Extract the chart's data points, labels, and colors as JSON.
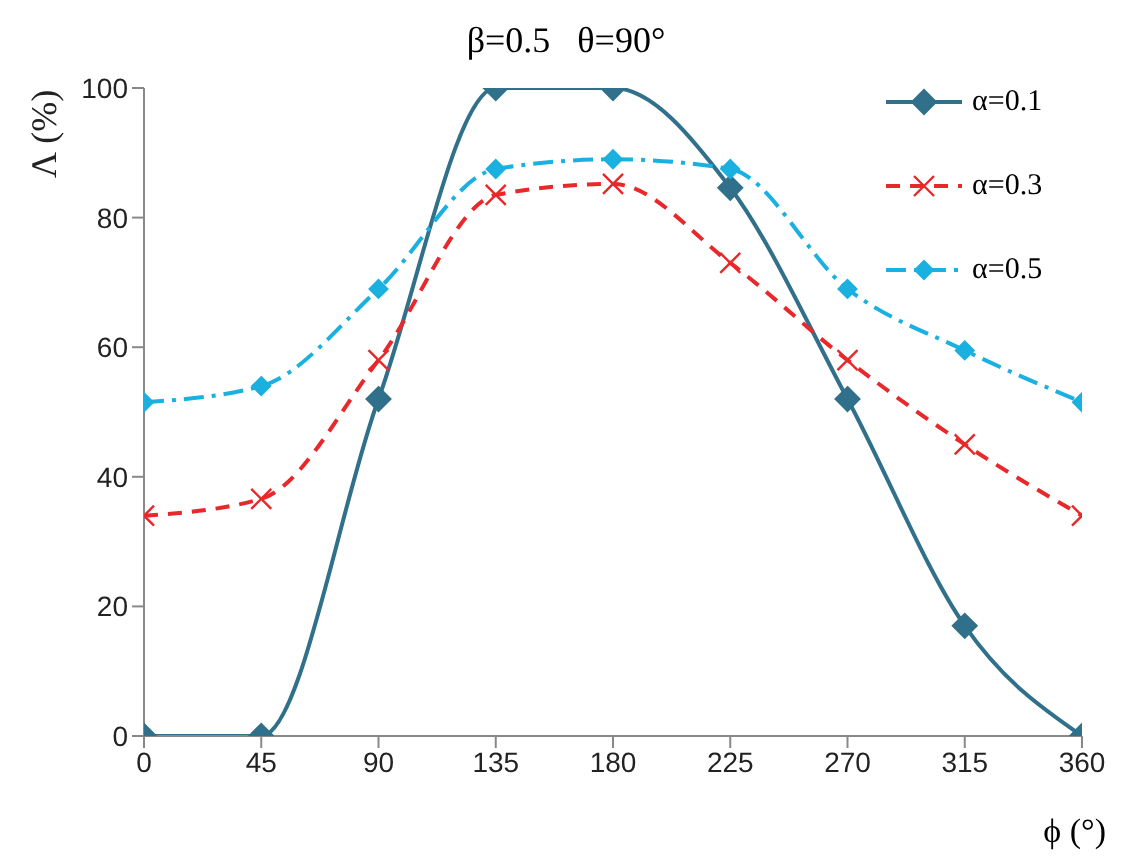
{
  "chart_data": {
    "type": "line",
    "title": "β=0.5   θ=90°",
    "xlabel": "ϕ (°)",
    "ylabel": "Λ (%)",
    "x": [
      0,
      45,
      90,
      135,
      180,
      225,
      270,
      315,
      360
    ],
    "series": [
      {
        "name": "α=0.1",
        "color": "#31708a",
        "values": [
          0,
          0,
          52,
          100,
          100,
          84.6,
          52,
          17,
          0
        ],
        "marker": "diamond",
        "line_style": "solid"
      },
      {
        "name": "α=0.3",
        "color": "#e8282a",
        "values": [
          34,
          36.6,
          58,
          83.5,
          85.2,
          73,
          58,
          45,
          34
        ],
        "marker": "cross",
        "line_style": "dashed"
      },
      {
        "name": "α=0.5",
        "color": "#1ab0e0",
        "values": [
          51.5,
          54,
          69,
          87.5,
          89,
          87.5,
          69,
          59.5,
          51.5
        ],
        "marker": "diamond",
        "line_style": "dashdot"
      }
    ],
    "xlim": [
      0,
      360
    ],
    "xticks": [
      0,
      45,
      90,
      135,
      180,
      225,
      270,
      315,
      360
    ],
    "ylim": [
      0,
      100
    ],
    "yticks": [
      0,
      20,
      40,
      60,
      80,
      100
    ],
    "grid": false,
    "legend": "top right"
  }
}
